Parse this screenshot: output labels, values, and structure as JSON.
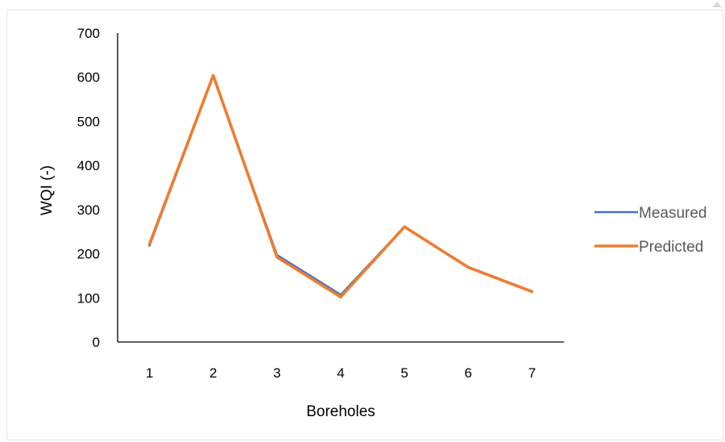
{
  "chart_data": {
    "type": "line",
    "title": "",
    "xlabel": "Boreholes",
    "ylabel": "WQI (-)",
    "categories": [
      "1",
      "2",
      "3",
      "4",
      "5",
      "6",
      "7"
    ],
    "ylim": [
      0,
      700
    ],
    "yticks": [
      0,
      100,
      200,
      300,
      400,
      500,
      600,
      700
    ],
    "grid": false,
    "legend_position": "right",
    "series": [
      {
        "name": "Measured",
        "color": "#4472C4",
        "values": [
          218,
          603,
          197,
          107,
          261,
          170,
          115
        ]
      },
      {
        "name": "Predicted",
        "color": "#ED7D31",
        "values": [
          222,
          604,
          192,
          102,
          261,
          169,
          114
        ]
      }
    ]
  }
}
